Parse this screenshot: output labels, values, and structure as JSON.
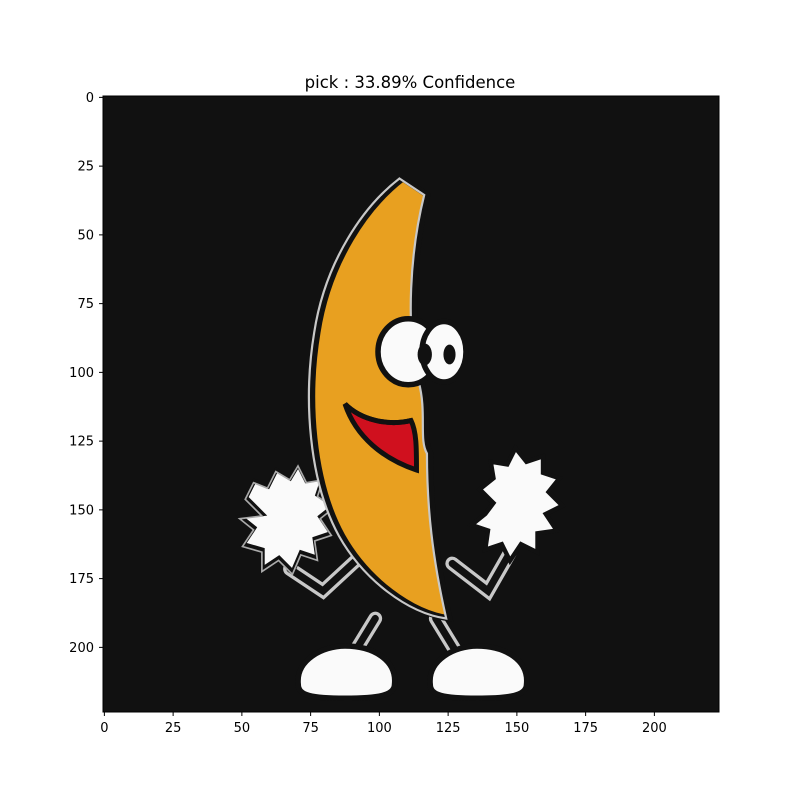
{
  "chart_data": {
    "type": "image",
    "title": "pick : 33.89% Confidence",
    "xlabel": "",
    "ylabel": "",
    "xlim": [
      -0.5,
      223.5
    ],
    "ylim": [
      223.5,
      -0.5
    ],
    "x_ticks": [
      0,
      25,
      50,
      75,
      100,
      125,
      150,
      175,
      200
    ],
    "y_ticks": [
      0,
      25,
      50,
      75,
      100,
      125,
      150,
      175,
      200
    ],
    "grid": false,
    "image_content": "cartoon dancing banana with googly eyes, red open mouth, white pom-poms and white shoes on a black background",
    "colors": {
      "background": "#111111",
      "banana": "#e8a020",
      "mouth": "#d0101e",
      "outline": "#c8c8c8",
      "white": "#fafafa"
    }
  }
}
